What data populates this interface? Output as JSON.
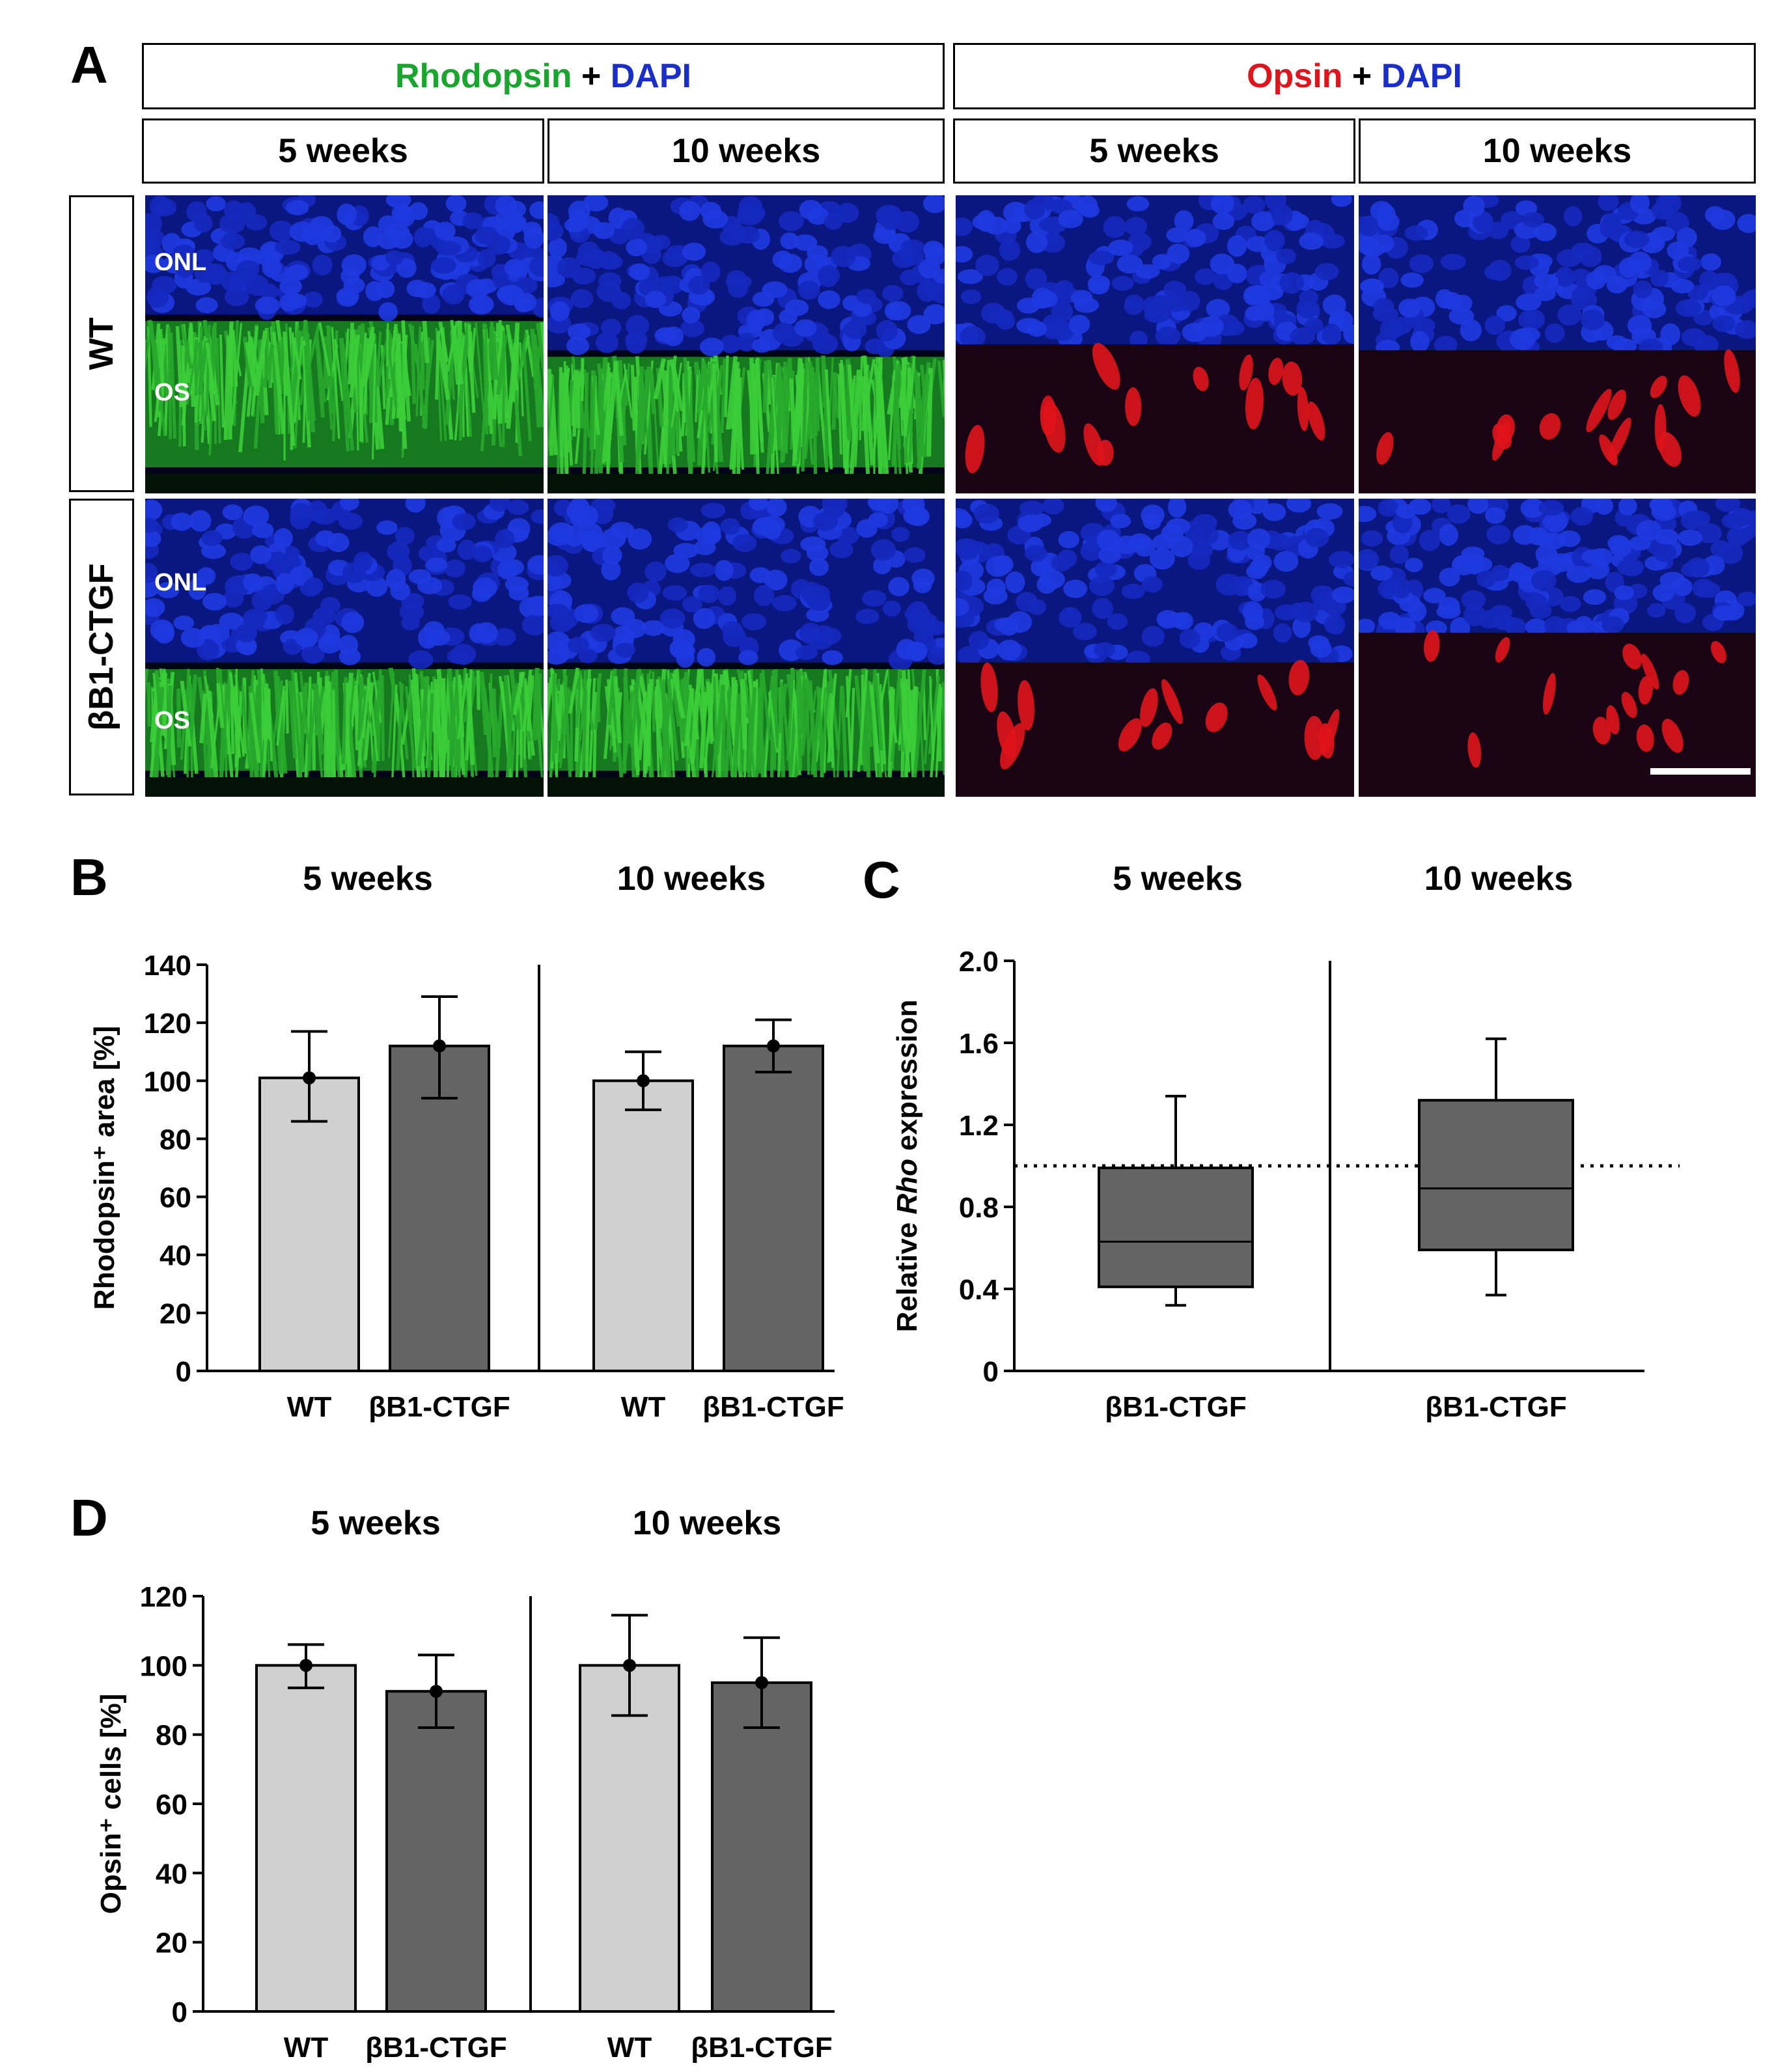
{
  "panel_a": {
    "letter": "A",
    "group_rho": {
      "stain1": "Rhodopsin",
      "plus": "+",
      "stain2": "DAPI"
    },
    "group_opsin": {
      "stain1": "Opsin",
      "plus": "+",
      "stain2": "DAPI"
    },
    "time_labels": [
      "5 weeks",
      "10 weeks",
      "5 weeks",
      "10 weeks"
    ],
    "row_labels": [
      "WT",
      "βB1-CTGF"
    ],
    "layer_labels": {
      "onl": "ONL",
      "os": "OS"
    },
    "colors": {
      "dapi": "#1a2fc9",
      "rhodopsin": "#1aa52e",
      "opsin": "#e0141b"
    }
  },
  "panel_b": {
    "letter": "B",
    "group_titles": [
      "5 weeks",
      "10 weeks"
    ],
    "chart_data": {
      "type": "bar",
      "ylabel": "Rhodopsin⁺ area [%]",
      "ylim": [
        0,
        140
      ],
      "yticks": [
        0,
        20,
        40,
        60,
        80,
        100,
        120,
        140
      ],
      "groups": [
        {
          "title": "5 weeks",
          "categories": [
            "WT",
            "βB1-CTGF"
          ],
          "values": [
            101,
            112
          ],
          "errors": [
            [
              86,
              117
            ],
            [
              94,
              129
            ]
          ]
        },
        {
          "title": "10 weeks",
          "categories": [
            "WT",
            "βB1-CTGF"
          ],
          "values": [
            100,
            112
          ],
          "errors": [
            [
              90,
              110
            ],
            [
              103,
              121
            ]
          ]
        }
      ],
      "colors": [
        "#d0d0d0",
        "#646464"
      ]
    }
  },
  "panel_c": {
    "letter": "C",
    "group_titles": [
      "5 weeks",
      "10 weeks"
    ],
    "chart_data": {
      "type": "box",
      "ylabel_pre": "Relative ",
      "ylabel_em": "Rho",
      "ylabel_post": " expression",
      "ylim": [
        0,
        2.0
      ],
      "yticks": [
        "0",
        "0.4",
        "0.8",
        "1.2",
        "1.6",
        "2.0"
      ],
      "reference_line": 1.0,
      "boxes": [
        {
          "title": "5 weeks",
          "category": "βB1-CTGF",
          "min": 0.32,
          "q1": 0.41,
          "median": 0.63,
          "q3": 0.99,
          "max": 1.34
        },
        {
          "title": "10 weeks",
          "category": "βB1-CTGF",
          "min": 0.37,
          "q1": 0.59,
          "median": 0.89,
          "q3": 1.32,
          "max": 1.62
        }
      ],
      "color": "#646464"
    }
  },
  "panel_d": {
    "letter": "D",
    "group_titles": [
      "5 weeks",
      "10 weeks"
    ],
    "chart_data": {
      "type": "bar",
      "ylabel": "Opsin⁺ cells [%]",
      "ylim": [
        0,
        120
      ],
      "yticks": [
        0,
        20,
        40,
        60,
        80,
        100,
        120
      ],
      "groups": [
        {
          "title": "5 weeks",
          "categories": [
            "WT",
            "βB1-CTGF"
          ],
          "values": [
            100,
            92.5
          ],
          "errors": [
            [
              93.5,
              106
            ],
            [
              82,
              103
            ]
          ]
        },
        {
          "title": "10 weeks",
          "categories": [
            "WT",
            "βB1-CTGF"
          ],
          "values": [
            100,
            95
          ],
          "errors": [
            [
              85.5,
              114.5
            ],
            [
              82,
              108
            ]
          ]
        }
      ],
      "colors": [
        "#d0d0d0",
        "#646464"
      ]
    }
  }
}
